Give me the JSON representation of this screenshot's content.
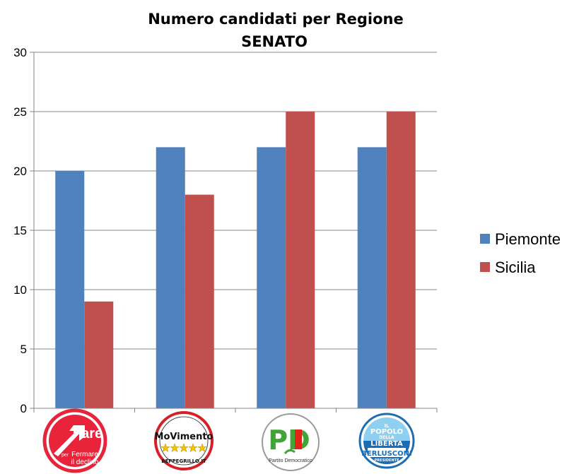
{
  "chart_data": {
    "type": "bar",
    "title": "Numero candidati per Regione",
    "subtitle": "SENATO",
    "xlabel": "",
    "ylabel": "",
    "ylim": [
      0,
      30
    ],
    "yticks": [
      0,
      5,
      10,
      15,
      20,
      25,
      30
    ],
    "grid": true,
    "legend_position": "right",
    "categories": [
      "Fare per Fermare il declino",
      "Movimento 5 Stelle",
      "Partito Democratico",
      "Il Popolo della Libertà"
    ],
    "category_logos": [
      {
        "icon": "fare-logo-icon",
        "text": [
          "Fare",
          "per",
          "Fermare",
          "il declino"
        ],
        "colors": {
          "ring": "#e8243b",
          "fill": "#ffffff",
          "text": "#ffffff"
        }
      },
      {
        "icon": "movimento-logo-icon",
        "text": [
          "MoVimento",
          "BEPPEGRILLO.IT"
        ],
        "colors": {
          "ring": "#d61f26",
          "fill": "#ffffff",
          "stars": "#f5c400"
        }
      },
      {
        "icon": "pd-logo-icon",
        "text": [
          "PD",
          "Partito Democratico"
        ],
        "colors": {
          "ring": "#9a9a9a",
          "green": "#3fa535",
          "red": "#e2231a"
        }
      },
      {
        "icon": "pdl-logo-icon",
        "text": [
          "IL",
          "POPOLO",
          "DELLA",
          "LIBERTA",
          "BERLUSCONI",
          "PRESIDENTE"
        ],
        "colors": {
          "ring": "#1b6cb5",
          "fill": "#8fd0f0",
          "text": "#ffffff"
        }
      }
    ],
    "series": [
      {
        "name": "Piemonte",
        "color": "#4f81bd",
        "values": [
          20,
          22,
          22,
          22
        ]
      },
      {
        "name": "Sicilia",
        "color": "#c0504d",
        "values": [
          9,
          18,
          25,
          25
        ]
      }
    ]
  }
}
